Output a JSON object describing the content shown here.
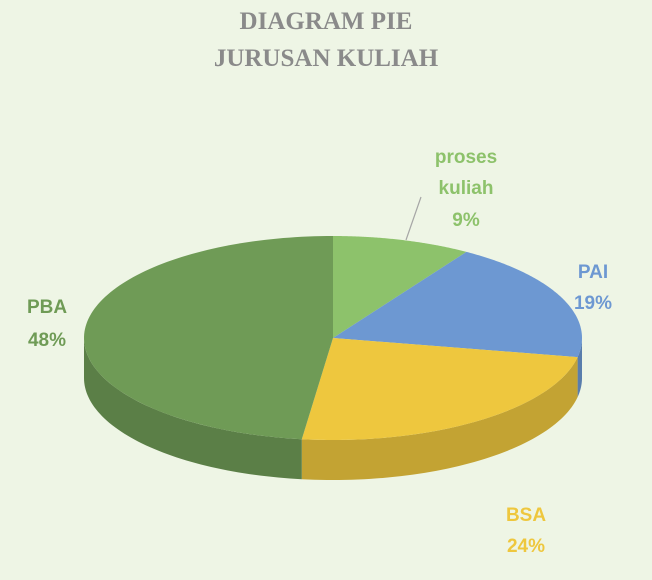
{
  "chart_data": {
    "type": "pie",
    "title": [
      "DIAGRAM PIE",
      "JURUSAN KULIAH"
    ],
    "categories": [
      "proses kuliah",
      "PAI",
      "BSA",
      "PBA"
    ],
    "values": [
      9,
      19,
      24,
      48
    ],
    "value_labels": [
      "9%",
      "19%",
      "24%",
      "48%"
    ],
    "colors": [
      "#8dc26b",
      "#6d98d2",
      "#eec73e",
      "#6f9b56"
    ]
  }
}
